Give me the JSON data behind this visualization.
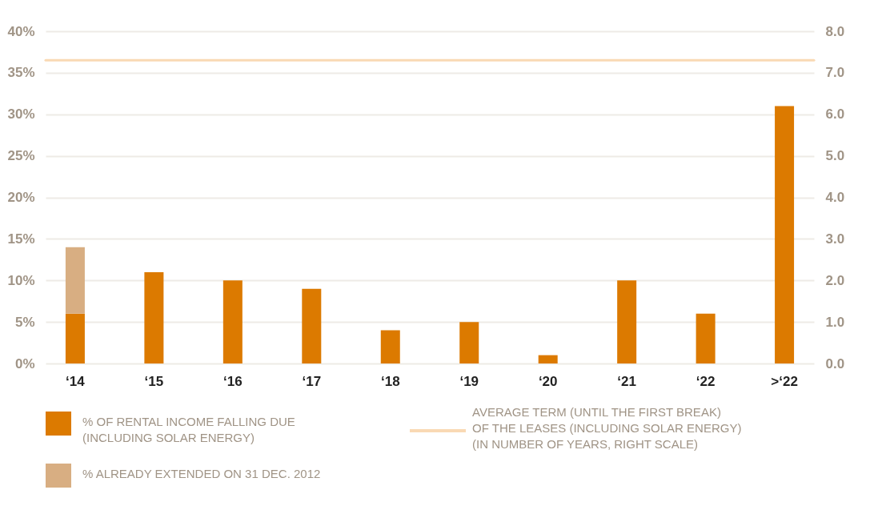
{
  "chart_data": {
    "type": "bar",
    "stacked": true,
    "categories": [
      "‘14",
      "‘15",
      "‘16",
      "‘17",
      "‘18",
      "‘19",
      "‘20",
      "‘21",
      "‘22",
      ">‘22"
    ],
    "series": [
      {
        "name": "% OF RENTAL INCOME FALLING DUE (INCLUDING SOLAR ENERGY)",
        "color": "#dc7a00",
        "values": [
          6,
          11,
          10,
          9,
          4,
          5,
          1,
          10,
          6,
          31
        ]
      },
      {
        "name": "% ALREADY EXTENDED ON 31 DEC. 2012",
        "color": "#d8ae82",
        "values": [
          8,
          null,
          null,
          null,
          null,
          null,
          null,
          null,
          null,
          null
        ]
      }
    ],
    "ylim": [
      0,
      40
    ],
    "yticks": [
      {
        "value": 0,
        "label": "0%"
      },
      {
        "value": 5,
        "label": "5%"
      },
      {
        "value": 10,
        "label": "10%"
      },
      {
        "value": 15,
        "label": "15%"
      },
      {
        "value": 20,
        "label": "20%"
      },
      {
        "value": 25,
        "label": "25%"
      },
      {
        "value": 30,
        "label": "30%"
      },
      {
        "value": 35,
        "label": "35%"
      },
      {
        "value": 40,
        "label": "40%"
      }
    ],
    "y2lim": [
      0,
      8
    ],
    "y2ticks": [
      {
        "value": 0,
        "label": "0.0"
      },
      {
        "value": 1,
        "label": "1.0"
      },
      {
        "value": 2,
        "label": "2.0"
      },
      {
        "value": 3,
        "label": "3.0"
      },
      {
        "value": 4,
        "label": "4.0"
      },
      {
        "value": 5,
        "label": "5.0"
      },
      {
        "value": 6,
        "label": "6.0"
      },
      {
        "value": 7,
        "label": "7.0"
      },
      {
        "value": 8,
        "label": "8.0"
      }
    ],
    "ref_lines": [
      {
        "axis": "y2",
        "value": 7.3,
        "label": "AVERAGE TERM (UNTIL THE FIRST BREAK) OF THE LEASES (INCLUDING SOLAR ENERGY) (IN NUMBER OF YEARS, RIGHT SCALE)",
        "color": "#f9d9b4",
        "line_style": "solid"
      }
    ],
    "grid": "y",
    "legend": "bottom"
  }
}
